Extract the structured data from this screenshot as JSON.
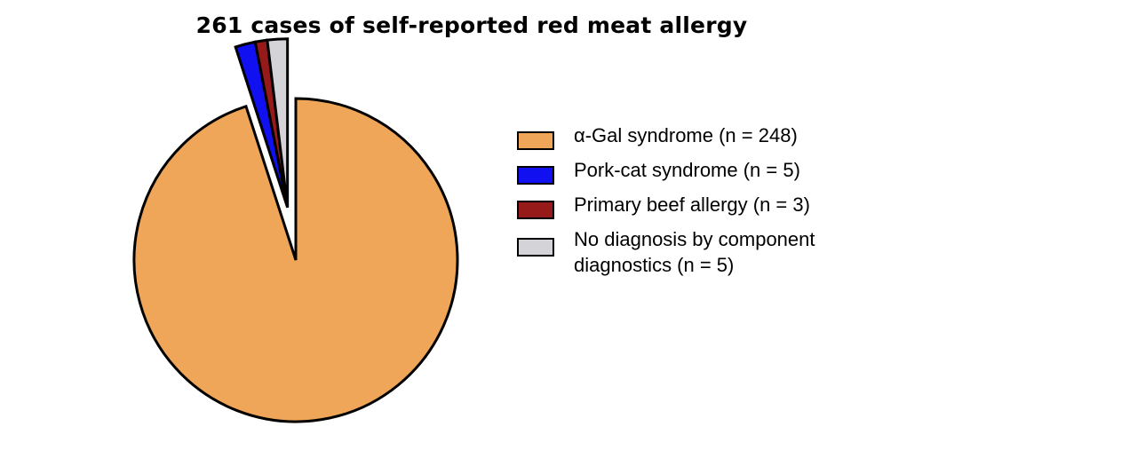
{
  "chart_data": {
    "type": "pie",
    "title": "261 cases of self-reported red meat allergy",
    "slices": [
      {
        "name": "α-Gal syndrome (n = 248)",
        "value": 248,
        "color": "#f0a658",
        "exploded": false
      },
      {
        "name": "Pork-cat syndrome (n = 5)",
        "value": 5,
        "color": "#1010f0",
        "exploded": true
      },
      {
        "name": "Primary beef allergy (n = 3)",
        "value": 3,
        "color": "#961a1a",
        "exploded": true
      },
      {
        "name": "No diagnosis by component\ndiagnostics (n = 5)",
        "value": 5,
        "color": "#d4d4d8",
        "exploded": true
      }
    ],
    "legend_position": "right",
    "edge_color": "#000000"
  }
}
